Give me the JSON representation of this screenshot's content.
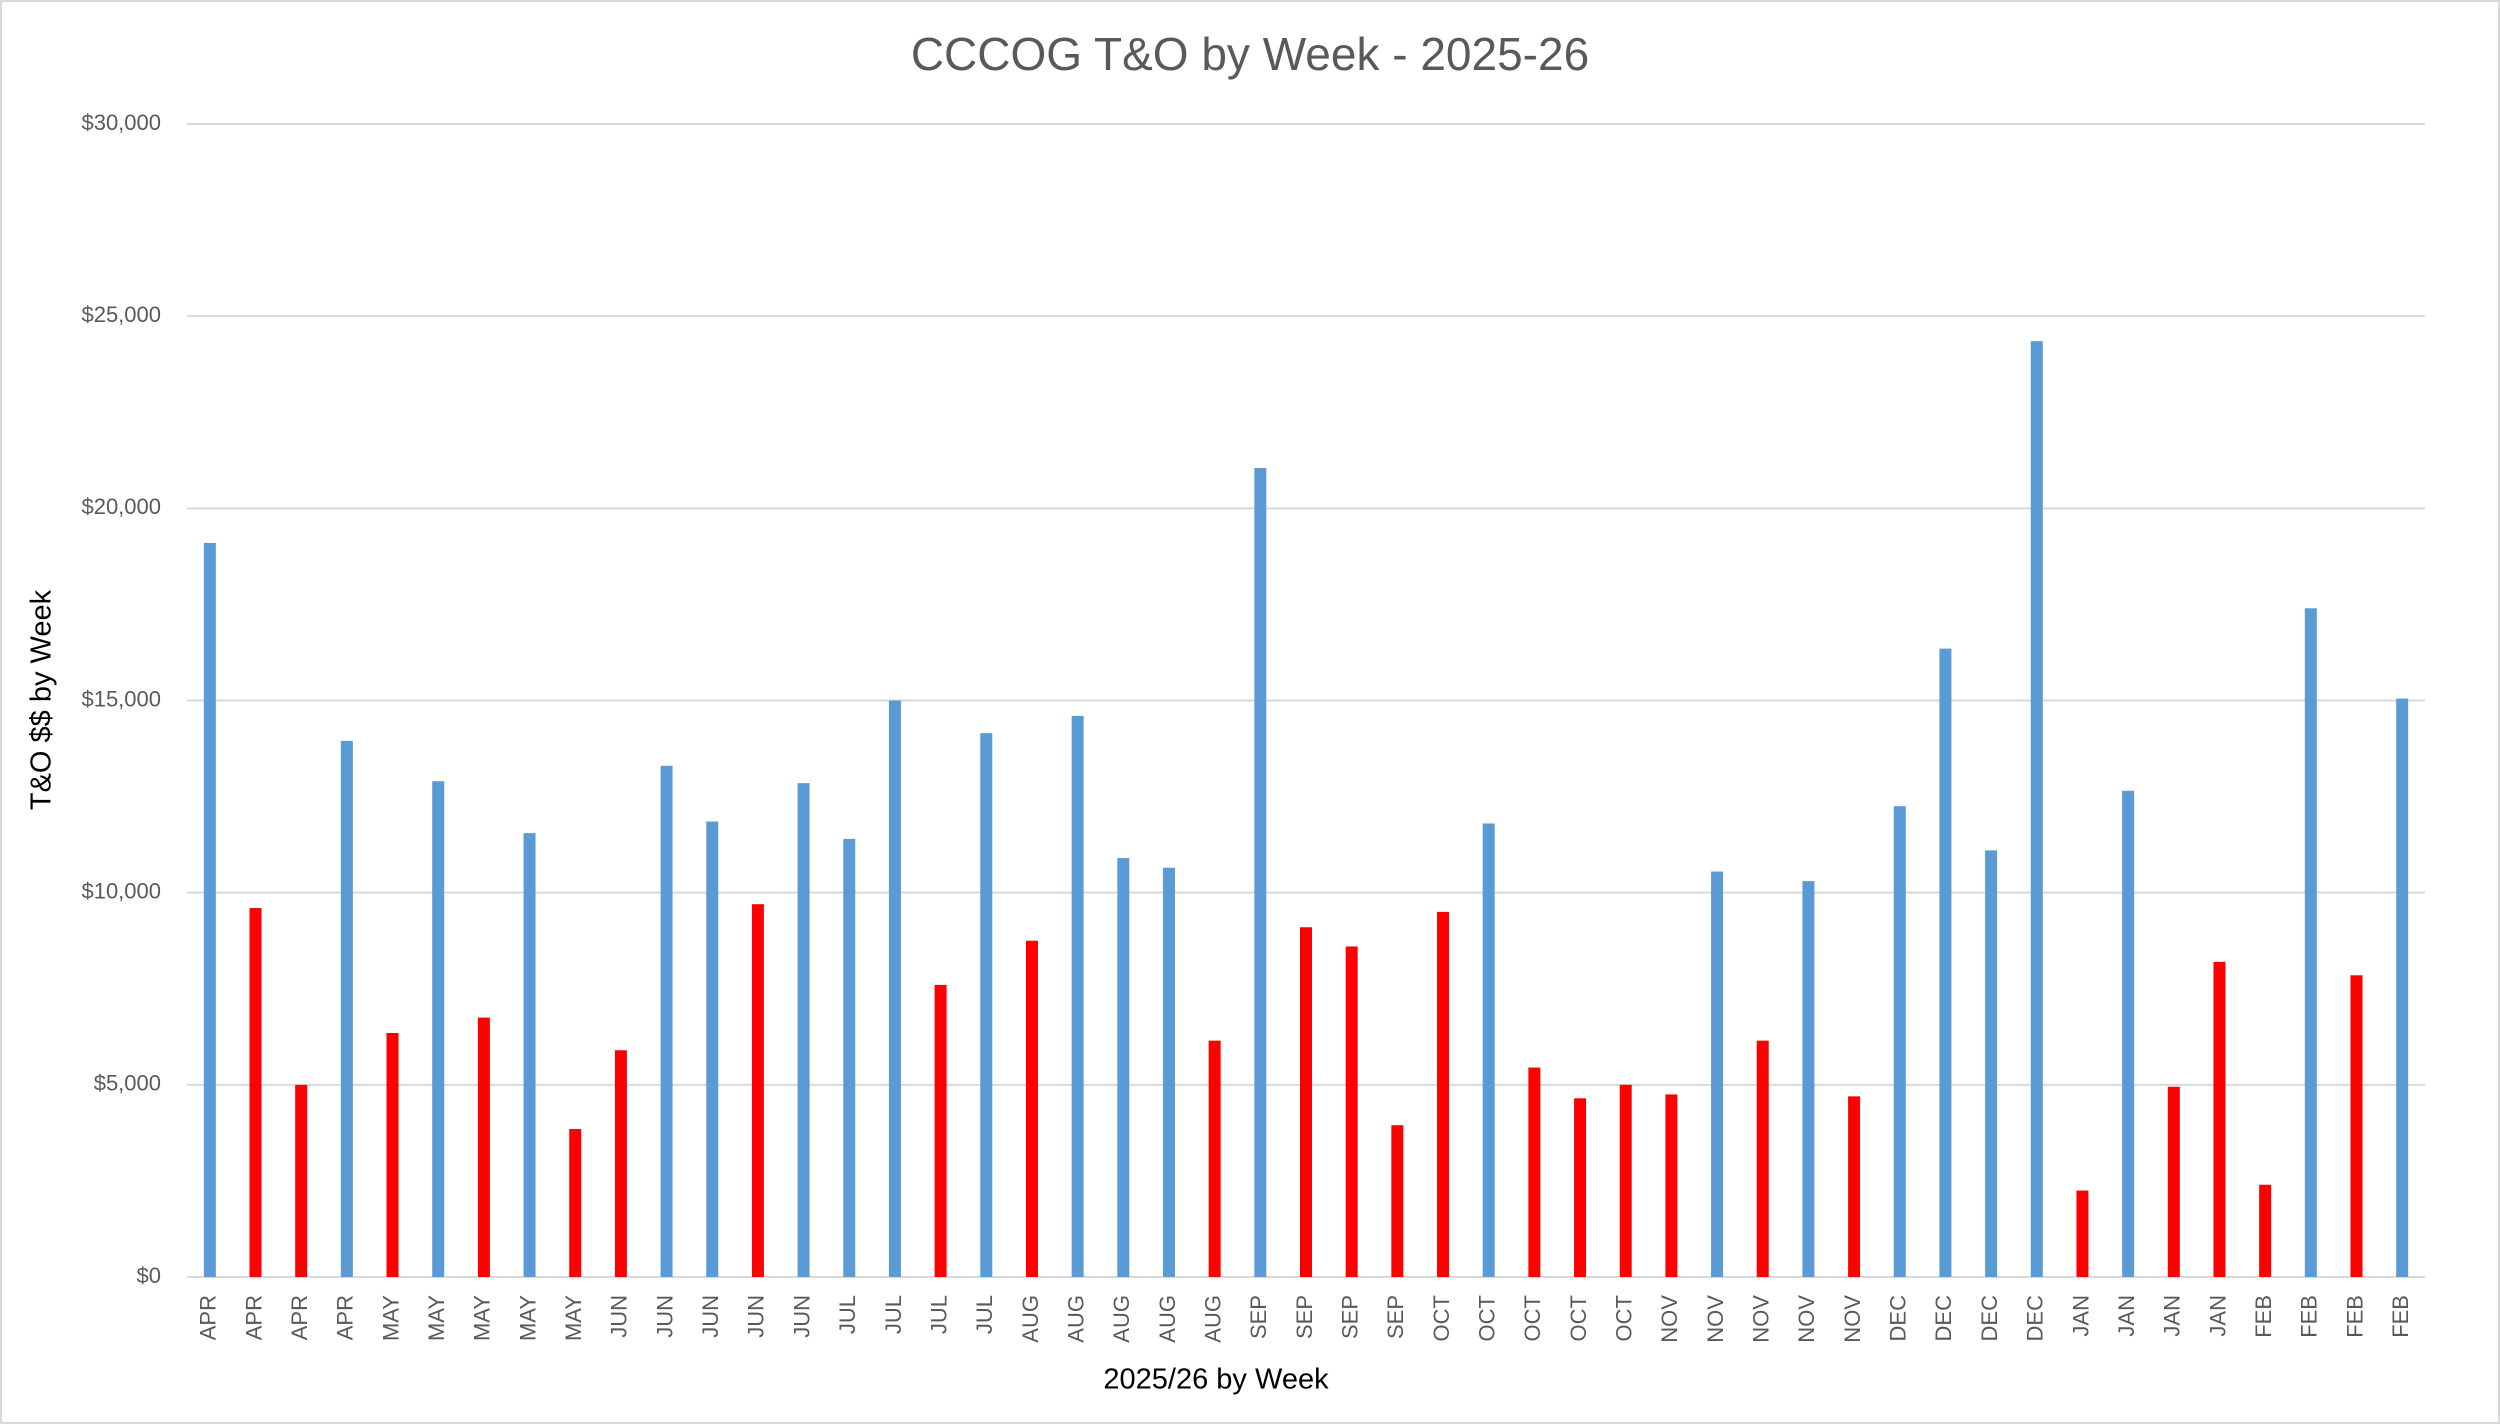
{
  "chart_data": {
    "type": "bar",
    "title": "CCCOG T&O by Week - 2025-26",
    "x_label": "2025/26 by Week",
    "y_label": "T&O $$ by Week",
    "categories": [
      "APR",
      "APR",
      "APR",
      "APR",
      "MAY",
      "MAY",
      "MAY",
      "MAY",
      "MAY",
      "JUN",
      "JUN",
      "JUN",
      "JUN",
      "JUN",
      "JUL",
      "JUL",
      "JUL",
      "JUL",
      "AUG",
      "AUG",
      "AUG",
      "AUG",
      "AUG",
      "SEP",
      "SEP",
      "SEP",
      "SEP",
      "OCT",
      "OCT",
      "OCT",
      "OCT",
      "OCT",
      "NOV",
      "NOV",
      "NOV",
      "NOV",
      "NOV",
      "DEC",
      "DEC",
      "DEC",
      "DEC",
      "JAN",
      "JAN",
      "JAN",
      "JAN",
      "FEB",
      "FEB",
      "FEB",
      "FEB"
    ],
    "values": [
      19100,
      9600,
      5000,
      13950,
      6350,
      12900,
      6750,
      11550,
      3850,
      5900,
      13300,
      11850,
      9700,
      12850,
      11400,
      15000,
      7600,
      14150,
      8750,
      14600,
      10900,
      10650,
      6150,
      21050,
      9100,
      8600,
      3950,
      9500,
      11800,
      5450,
      4650,
      5000,
      4750,
      10550,
      6150,
      10300,
      4700,
      12250,
      16350,
      11100,
      24350,
      2250,
      12650,
      4950,
      8200,
      2400,
      17400,
      7850,
      15050
    ],
    "colors": [
      "#5b9bd5",
      "#ff0000",
      "#ff0000",
      "#5b9bd5",
      "#ff0000",
      "#5b9bd5",
      "#ff0000",
      "#5b9bd5",
      "#ff0000",
      "#ff0000",
      "#5b9bd5",
      "#5b9bd5",
      "#ff0000",
      "#5b9bd5",
      "#5b9bd5",
      "#5b9bd5",
      "#ff0000",
      "#5b9bd5",
      "#ff0000",
      "#5b9bd5",
      "#5b9bd5",
      "#5b9bd5",
      "#ff0000",
      "#5b9bd5",
      "#ff0000",
      "#ff0000",
      "#ff0000",
      "#ff0000",
      "#5b9bd5",
      "#ff0000",
      "#ff0000",
      "#ff0000",
      "#ff0000",
      "#5b9bd5",
      "#ff0000",
      "#5b9bd5",
      "#ff0000",
      "#5b9bd5",
      "#5b9bd5",
      "#5b9bd5",
      "#5b9bd5",
      "#ff0000",
      "#5b9bd5",
      "#ff0000",
      "#ff0000",
      "#ff0000",
      "#5b9bd5",
      "#ff0000",
      "#5b9bd5"
    ],
    "ylim": [
      0,
      30000
    ],
    "yticks": [
      {
        "value": 0,
        "label": "$0"
      },
      {
        "value": 5000,
        "label": "$5,000"
      },
      {
        "value": 10000,
        "label": "$10,000"
      },
      {
        "value": 15000,
        "label": "$15,000"
      },
      {
        "value": 20000,
        "label": "$20,000"
      },
      {
        "value": 25000,
        "label": "$25,000"
      },
      {
        "value": 30000,
        "label": "$30,000"
      }
    ],
    "grid": true
  }
}
